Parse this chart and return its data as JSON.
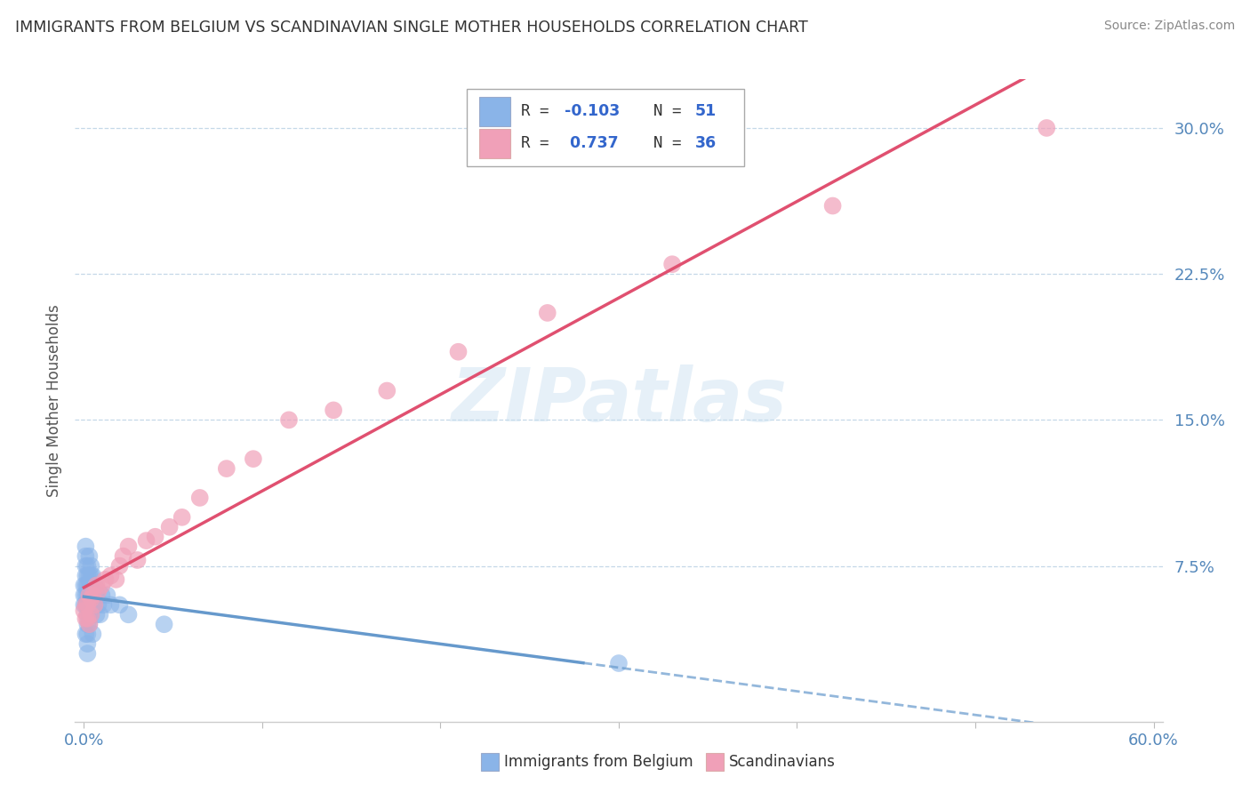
{
  "title": "IMMIGRANTS FROM BELGIUM VS SCANDINAVIAN SINGLE MOTHER HOUSEHOLDS CORRELATION CHART",
  "source": "Source: ZipAtlas.com",
  "ylabel": "Single Mother Households",
  "yticks": [
    "7.5%",
    "15.0%",
    "22.5%",
    "30.0%"
  ],
  "ytick_vals": [
    0.075,
    0.15,
    0.225,
    0.3
  ],
  "xlim": [
    0.0,
    0.6
  ],
  "ylim": [
    -0.005,
    0.325
  ],
  "color_belgium": "#8ab4e8",
  "color_scandinavian": "#f0a0b8",
  "color_line_belgium": "#6699cc",
  "color_line_scandinavian": "#e05070",
  "watermark": "ZIPatlas",
  "belgium_x": [
    0.0,
    0.0,
    0.0,
    0.001,
    0.001,
    0.001,
    0.001,
    0.001,
    0.001,
    0.001,
    0.001,
    0.002,
    0.002,
    0.002,
    0.002,
    0.002,
    0.002,
    0.002,
    0.002,
    0.002,
    0.002,
    0.003,
    0.003,
    0.003,
    0.003,
    0.003,
    0.003,
    0.003,
    0.004,
    0.004,
    0.004,
    0.004,
    0.004,
    0.005,
    0.005,
    0.005,
    0.005,
    0.006,
    0.006,
    0.007,
    0.007,
    0.008,
    0.009,
    0.01,
    0.011,
    0.013,
    0.015,
    0.02,
    0.025,
    0.045,
    0.3
  ],
  "belgium_y": [
    0.055,
    0.06,
    0.065,
    0.075,
    0.08,
    0.085,
    0.07,
    0.065,
    0.06,
    0.055,
    0.04,
    0.075,
    0.07,
    0.065,
    0.06,
    0.055,
    0.05,
    0.045,
    0.04,
    0.035,
    0.03,
    0.08,
    0.07,
    0.065,
    0.06,
    0.055,
    0.05,
    0.045,
    0.075,
    0.07,
    0.065,
    0.06,
    0.05,
    0.07,
    0.065,
    0.055,
    0.04,
    0.065,
    0.055,
    0.06,
    0.05,
    0.055,
    0.05,
    0.06,
    0.055,
    0.06,
    0.055,
    0.055,
    0.05,
    0.045,
    0.025
  ],
  "scandinavian_x": [
    0.0,
    0.001,
    0.001,
    0.002,
    0.002,
    0.003,
    0.003,
    0.004,
    0.004,
    0.005,
    0.006,
    0.007,
    0.008,
    0.01,
    0.012,
    0.015,
    0.018,
    0.02,
    0.022,
    0.025,
    0.03,
    0.035,
    0.04,
    0.048,
    0.055,
    0.065,
    0.08,
    0.095,
    0.115,
    0.14,
    0.17,
    0.21,
    0.26,
    0.33,
    0.42,
    0.54
  ],
  "scandinavian_y": [
    0.052,
    0.048,
    0.055,
    0.055,
    0.048,
    0.06,
    0.045,
    0.058,
    0.05,
    0.06,
    0.055,
    0.065,
    0.062,
    0.065,
    0.068,
    0.07,
    0.068,
    0.075,
    0.08,
    0.085,
    0.078,
    0.088,
    0.09,
    0.095,
    0.1,
    0.11,
    0.125,
    0.13,
    0.15,
    0.155,
    0.165,
    0.185,
    0.205,
    0.23,
    0.26,
    0.3
  ]
}
